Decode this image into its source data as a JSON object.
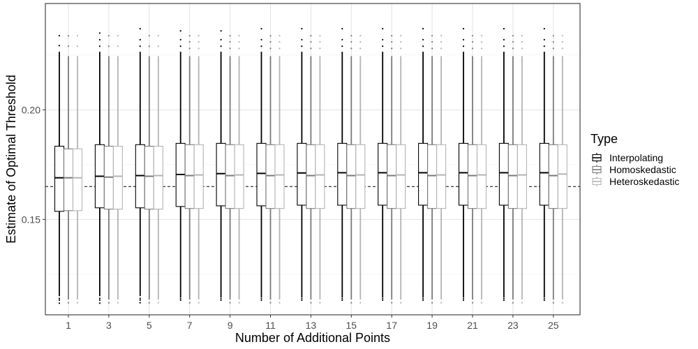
{
  "chart_data": {
    "type": "boxplot",
    "xlabel": "Number of Additional Points",
    "ylabel": "Estimate of Optimal Threshold",
    "ylim": [
      0.1065,
      0.2485
    ],
    "grid": true,
    "categories": [
      "1",
      "3",
      "5",
      "7",
      "9",
      "11",
      "13",
      "15",
      "17",
      "19",
      "21",
      "23",
      "25"
    ],
    "y_ticks": [
      {
        "value": 0.15,
        "label": "0.15"
      },
      {
        "value": 0.2,
        "label": "0.20"
      }
    ],
    "y_minor_ticks": [
      0.125,
      0.175,
      0.225
    ],
    "reference_line": {
      "y": 0.165,
      "style": "dashed"
    },
    "legend": {
      "title": "Type",
      "position": "right"
    },
    "series": [
      {
        "name": "Interpolating",
        "color": "#000000",
        "q1": [
          0.1537,
          0.1553,
          0.1553,
          0.1559,
          0.1562,
          0.1562,
          0.1565,
          0.1565,
          0.1565,
          0.1565,
          0.1565,
          0.1565,
          0.1565
        ],
        "median": [
          0.169,
          0.1697,
          0.17,
          0.1705,
          0.1709,
          0.171,
          0.1712,
          0.1713,
          0.1713,
          0.1713,
          0.1713,
          0.1713,
          0.1713
        ],
        "q3": [
          0.1834,
          0.1841,
          0.1841,
          0.1847,
          0.1847,
          0.1847,
          0.1847,
          0.1847,
          0.1847,
          0.1847,
          0.1847,
          0.1847,
          0.1847
        ],
        "whisker_low": [
          0.115,
          0.115,
          0.115,
          0.115,
          0.115,
          0.115,
          0.115,
          0.115,
          0.115,
          0.115,
          0.115,
          0.115,
          0.115
        ],
        "whisker_high": [
          0.2265,
          0.2265,
          0.2265,
          0.2265,
          0.2265,
          0.2265,
          0.2265,
          0.2265,
          0.2265,
          0.2265,
          0.2265,
          0.2265,
          0.2265
        ],
        "outliers": [
          [
            0.1118,
            0.114,
            0.1132,
            0.2293,
            0.2338
          ],
          [
            0.1118,
            0.114,
            0.1132,
            0.229,
            0.232,
            0.235
          ],
          [
            0.112,
            0.114,
            0.1132,
            0.229,
            0.232,
            0.237
          ],
          [
            0.114,
            0.1148,
            0.1132,
            0.229,
            0.232,
            0.236
          ],
          [
            0.114,
            0.1148,
            0.1132,
            0.229,
            0.232,
            0.236
          ],
          [
            0.114,
            0.1148,
            0.1132,
            0.229,
            0.232,
            0.237
          ],
          [
            0.114,
            0.1148,
            0.1132,
            0.229,
            0.232,
            0.237
          ],
          [
            0.114,
            0.1148,
            0.1132,
            0.229,
            0.232,
            0.237
          ],
          [
            0.114,
            0.1148,
            0.1132,
            0.229,
            0.232,
            0.237
          ],
          [
            0.114,
            0.1148,
            0.1132,
            0.229,
            0.232,
            0.237
          ],
          [
            0.114,
            0.1148,
            0.1132,
            0.229,
            0.232,
            0.237
          ],
          [
            0.114,
            0.1148,
            0.1132,
            0.229,
            0.232,
            0.237
          ],
          [
            0.114,
            0.1148,
            0.1132,
            0.229,
            0.232,
            0.237
          ]
        ]
      },
      {
        "name": "Homoskedastic",
        "color": "#7a7a7a",
        "q1": [
          0.154,
          0.1547,
          0.1547,
          0.155,
          0.155,
          0.155,
          0.155,
          0.155,
          0.155,
          0.155,
          0.155,
          0.155,
          0.155
        ],
        "median": [
          0.169,
          0.1693,
          0.1697,
          0.17,
          0.17,
          0.17,
          0.17,
          0.17,
          0.17,
          0.17,
          0.17,
          0.17,
          0.17
        ],
        "q3": [
          0.1822,
          0.1834,
          0.1834,
          0.1841,
          0.1841,
          0.1841,
          0.1841,
          0.1841,
          0.1841,
          0.1841,
          0.1841,
          0.1841,
          0.1841
        ],
        "whisker_low": [
          0.1135,
          0.1135,
          0.1135,
          0.1135,
          0.1135,
          0.1135,
          0.1135,
          0.1135,
          0.1135,
          0.1135,
          0.1135,
          0.1135,
          0.1135
        ],
        "whisker_high": [
          0.2245,
          0.2245,
          0.2245,
          0.2245,
          0.2245,
          0.2245,
          0.2245,
          0.2245,
          0.2245,
          0.2245,
          0.2245,
          0.2245,
          0.2245
        ],
        "outliers": [
          [
            0.112,
            0.229,
            0.2338
          ],
          [
            0.112,
            0.229,
            0.2338
          ],
          [
            0.112,
            0.229,
            0.2338
          ],
          [
            0.112,
            0.228,
            0.231,
            0.2338
          ],
          [
            0.112,
            0.228,
            0.231,
            0.2338
          ],
          [
            0.112,
            0.228,
            0.231,
            0.2338
          ],
          [
            0.112,
            0.228,
            0.231,
            0.2338
          ],
          [
            0.112,
            0.228,
            0.231,
            0.2338
          ],
          [
            0.112,
            0.228,
            0.231,
            0.2338
          ],
          [
            0.112,
            0.228,
            0.231,
            0.2338
          ],
          [
            0.112,
            0.228,
            0.231,
            0.2338
          ],
          [
            0.112,
            0.228,
            0.231,
            0.2338
          ],
          [
            0.112,
            0.228,
            0.231,
            0.2338
          ]
        ]
      },
      {
        "name": "Heteroskedastic",
        "color": "#b4b4b4",
        "q1": [
          0.154,
          0.1547,
          0.1547,
          0.155,
          0.155,
          0.155,
          0.155,
          0.155,
          0.155,
          0.155,
          0.155,
          0.155,
          0.155
        ],
        "median": [
          0.169,
          0.1697,
          0.17,
          0.1703,
          0.1703,
          0.1703,
          0.1703,
          0.1703,
          0.1703,
          0.1703,
          0.1703,
          0.1703,
          0.1707
        ],
        "q3": [
          0.1822,
          0.1834,
          0.1834,
          0.1841,
          0.1841,
          0.1841,
          0.1841,
          0.1841,
          0.1841,
          0.1841,
          0.1841,
          0.1841,
          0.1841
        ],
        "whisker_low": [
          0.1135,
          0.1135,
          0.1135,
          0.1135,
          0.1135,
          0.1135,
          0.1135,
          0.1135,
          0.1135,
          0.1135,
          0.1135,
          0.1135,
          0.1135
        ],
        "whisker_high": [
          0.2245,
          0.2245,
          0.2245,
          0.2245,
          0.2245,
          0.2245,
          0.2245,
          0.2245,
          0.2245,
          0.2245,
          0.2245,
          0.2245,
          0.2245
        ],
        "outliers": [
          [
            0.112,
            0.229,
            0.2338
          ],
          [
            0.112,
            0.229,
            0.2338
          ],
          [
            0.112,
            0.229,
            0.2338
          ],
          [
            0.112,
            0.228,
            0.231,
            0.2338
          ],
          [
            0.112,
            0.228,
            0.231,
            0.2338
          ],
          [
            0.112,
            0.228,
            0.231,
            0.2338
          ],
          [
            0.112,
            0.228,
            0.231,
            0.2338
          ],
          [
            0.112,
            0.228,
            0.231,
            0.2338
          ],
          [
            0.112,
            0.228,
            0.231,
            0.2338
          ],
          [
            0.112,
            0.228,
            0.231,
            0.2338
          ],
          [
            0.112,
            0.228,
            0.231,
            0.2338
          ],
          [
            0.112,
            0.228,
            0.231,
            0.2338
          ],
          [
            0.112,
            0.228,
            0.231,
            0.2338
          ]
        ]
      }
    ]
  }
}
